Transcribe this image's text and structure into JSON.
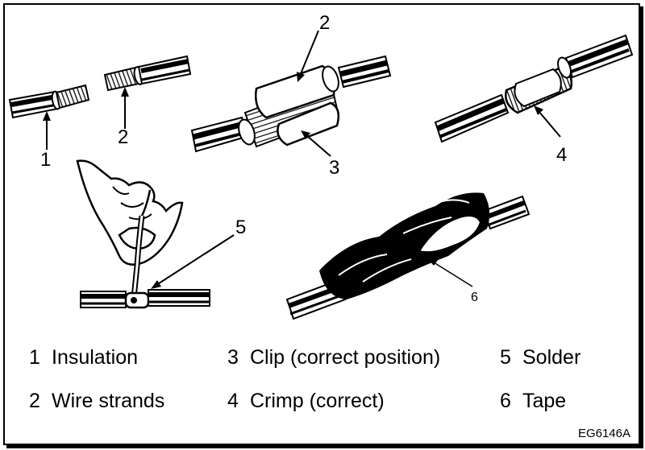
{
  "callouts": [
    "1",
    "2",
    "2",
    "3",
    "4",
    "5",
    "6"
  ],
  "legend": [
    {
      "num": "1",
      "label": "Insulation"
    },
    {
      "num": "2",
      "label": "Wire strands"
    },
    {
      "num": "3",
      "label": "Clip (correct position)"
    },
    {
      "num": "4",
      "label": "Crimp (correct)"
    },
    {
      "num": "5",
      "label": "Solder"
    },
    {
      "num": "6",
      "label": "Tape"
    }
  ],
  "ref_code": "EG6146A"
}
